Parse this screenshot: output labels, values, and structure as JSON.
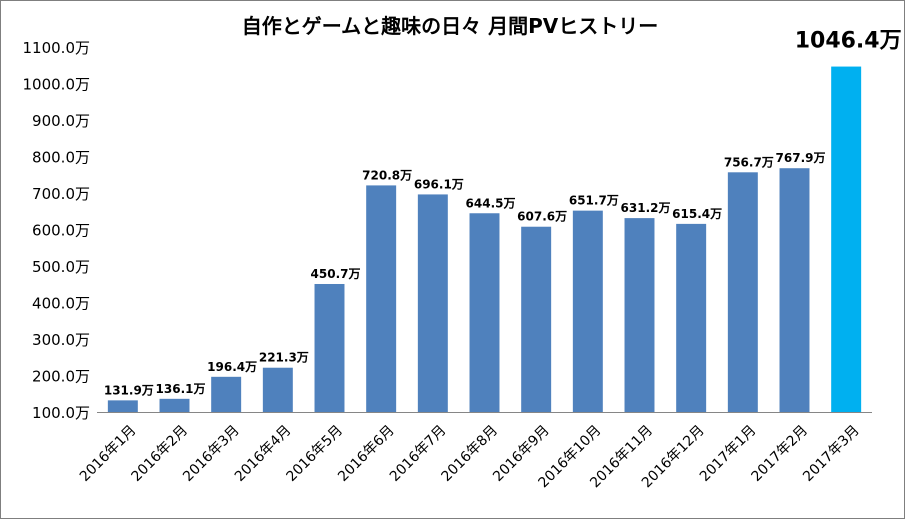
{
  "chart_data": {
    "type": "bar",
    "title": "自作とゲームと趣味の日々 月間PVヒストリー",
    "xlabel": "",
    "ylabel": "",
    "unit_suffix": "万",
    "ylim": [
      100,
      1100
    ],
    "yticks": [
      "100.0万",
      "200.0万",
      "300.0万",
      "400.0万",
      "500.0万",
      "600.0万",
      "700.0万",
      "800.0万",
      "900.0万",
      "1000.0万",
      "1100.0万"
    ],
    "ytick_values": [
      100,
      200,
      300,
      400,
      500,
      600,
      700,
      800,
      900,
      1000,
      1100
    ],
    "grid": false,
    "legend": "none",
    "categories": [
      "2016年1月",
      "2016年2月",
      "2016年3月",
      "2016年4月",
      "2016年5月",
      "2016年6月",
      "2016年7月",
      "2016年8月",
      "2016年9月",
      "2016年10月",
      "2016年11月",
      "2016年12月",
      "2017年1月",
      "2017年2月",
      "2017年3月"
    ],
    "values": [
      131.9,
      136.1,
      196.4,
      221.3,
      450.7,
      720.8,
      696.1,
      644.5,
      607.6,
      651.7,
      631.2,
      615.4,
      756.7,
      767.9,
      1046.4
    ],
    "data_labels": [
      "131.9万",
      "136.1万",
      "196.4万",
      "221.3万",
      "450.7万",
      "720.8万",
      "696.1万",
      "644.5万",
      "607.6万",
      "651.7万",
      "631.2万",
      "615.4万",
      "756.7万",
      "767.9万",
      "1046.4万"
    ],
    "highlight_index": 14,
    "bar_color": "#4f81bd",
    "highlight_color": "#00b0f0"
  }
}
